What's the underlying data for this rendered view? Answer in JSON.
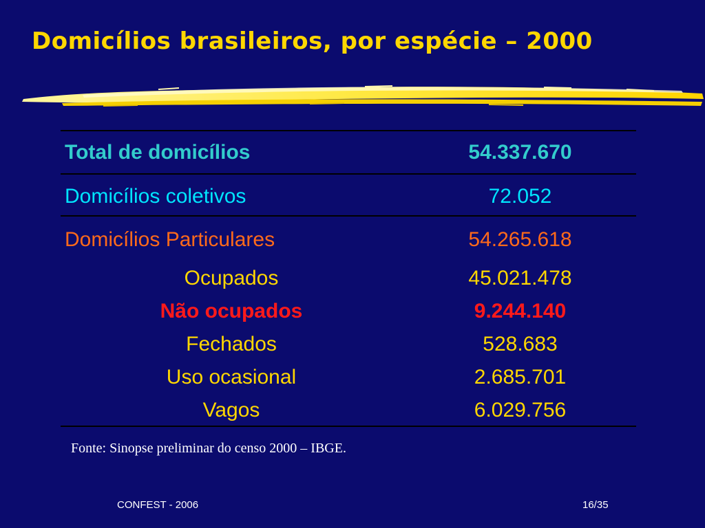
{
  "slide": {
    "title": "Domicílios brasileiros, por espécie –  2000",
    "source": "Fonte: Sinopse preliminar do censo 2000 – IBGE.",
    "footer_left": "CONFEST - 2006",
    "page_number": "16/35"
  },
  "colors": {
    "background": "#0b0b6e",
    "title": "#ffd700",
    "total_row": "#33cccc",
    "collective_row": "#00e5ff",
    "private_row": "#ff6a1a",
    "sub_rows": "#ffd700",
    "highlight_row": "#ff1a1a"
  },
  "table": {
    "total": {
      "label": "Total de domicílios",
      "value": "54.337.670"
    },
    "coletivos": {
      "label": "Domicílios coletivos",
      "value": "72.052"
    },
    "particulares": {
      "label": "Domicílios Particulares",
      "value": "54.265.618"
    },
    "ocupados": {
      "label": "Ocupados",
      "value": "45.021.478"
    },
    "nao_ocupados": {
      "label": "Não ocupados",
      "value": "9.244.140"
    },
    "fechados": {
      "label": "Fechados",
      "value": "528.683"
    },
    "uso_ocasional": {
      "label": "Uso ocasional",
      "value": "2.685.701"
    },
    "vagos": {
      "label": "Vagos",
      "value": "6.029.756"
    }
  }
}
